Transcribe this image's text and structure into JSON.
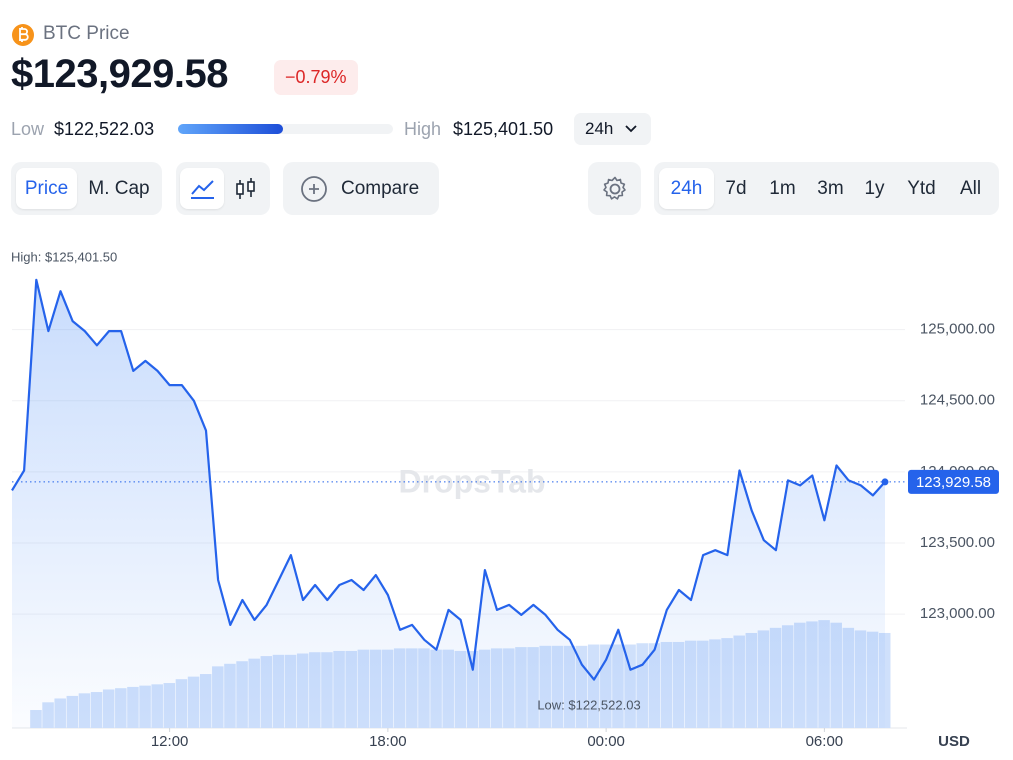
{
  "header": {
    "title": "BTC Price",
    "price": "$123,929.58",
    "change": "−0.79%",
    "low_label": "Low",
    "low": "$122,522.03",
    "high_label": "High",
    "high": "$125,401.50",
    "period": "24h"
  },
  "toolbar": {
    "views": [
      "Price",
      "M. Cap"
    ],
    "compare": "Compare",
    "ranges": [
      "24h",
      "7d",
      "1m",
      "3m",
      "1y",
      "Ytd",
      "All"
    ]
  },
  "chart_data": {
    "type": "line",
    "categories": [
      null,
      null,
      null,
      null,
      null,
      null,
      null,
      null,
      null,
      null,
      null,
      null,
      null,
      "12:00",
      null,
      null,
      null,
      null,
      null,
      null,
      null,
      null,
      null,
      null,
      null,
      null,
      null,
      null,
      null,
      null,
      null,
      "18:00",
      null,
      null,
      null,
      null,
      null,
      null,
      null,
      null,
      null,
      null,
      null,
      null,
      null,
      null,
      null,
      null,
      null,
      "00:00",
      null,
      null,
      null,
      null,
      null,
      null,
      null,
      null,
      null,
      null,
      null,
      null,
      null,
      null,
      null,
      null,
      null,
      "06:00",
      null,
      null,
      null,
      null,
      null
    ],
    "series": [
      {
        "type": "line",
        "color": "#2563eb",
        "values": [
          123870,
          124010,
          125350,
          124990,
          125270,
          125060,
          124990,
          124890,
          124990,
          124990,
          124710,
          124780,
          124710,
          124610,
          124610,
          124500,
          124290,
          123240,
          122925,
          123100,
          122960,
          123065,
          123240,
          123415,
          123100,
          123205,
          123100,
          123205,
          123240,
          123170,
          123275,
          123135,
          122890,
          122925,
          122820,
          122750,
          123030,
          122960,
          122610,
          123310,
          123030,
          123065,
          122995,
          123065,
          122995,
          122890,
          122820,
          122645,
          122540,
          122680,
          122890,
          122610,
          122645,
          122750,
          123030,
          123170,
          123100,
          123415,
          123450,
          123415,
          124010,
          123730,
          123520,
          123450,
          123940,
          123905,
          123975,
          123660,
          124045,
          123940,
          123905,
          123835,
          123929.58
        ]
      },
      {
        "type": "bar",
        "axis": "y2",
        "color": "#cfe0fb",
        "values": [
          0,
          0,
          14,
          20,
          23,
          25,
          27,
          28,
          30,
          31,
          32,
          33,
          34,
          35,
          38,
          40,
          42,
          48,
          50,
          52,
          54,
          56,
          57,
          57,
          58,
          59,
          59,
          60,
          60,
          61,
          61,
          61,
          62,
          62,
          62,
          61,
          61,
          60,
          60,
          61,
          62,
          62,
          63,
          63,
          64,
          64,
          64,
          64,
          65,
          65,
          65,
          65,
          66,
          66,
          67,
          67,
          68,
          68,
          69,
          70,
          72,
          74,
          76,
          78,
          80,
          82,
          83,
          84,
          82,
          78,
          76,
          75,
          74
        ]
      }
    ],
    "ylim": [
      122200,
      125630
    ],
    "yticks": [
      {
        "value": 123000,
        "label": "123,000.00"
      },
      {
        "value": 123500,
        "label": "123,500.00"
      },
      {
        "value": 124000,
        "label": "124,000.00"
      },
      {
        "value": 124500,
        "label": "124,500.00"
      },
      {
        "value": 125000,
        "label": "125,000.00"
      }
    ],
    "y2lim": [
      0,
      380
    ],
    "grid": true,
    "current": {
      "value": 123929.58,
      "label": "123,929.58"
    },
    "annotations": {
      "high": "High: $125,401.50",
      "low": "Low: $122,522.03",
      "currency": "USD",
      "watermark": "DropsTab"
    }
  }
}
